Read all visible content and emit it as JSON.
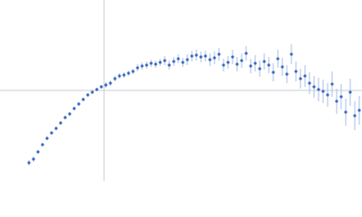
{
  "chart_data": {
    "type": "scatter",
    "color": "#3a68bd",
    "error_color": "#a9bfe6",
    "xlim": [
      0,
      400
    ],
    "ylim": [
      0,
      200
    ],
    "x": [
      32,
      37,
      42,
      47,
      52,
      57,
      62,
      67,
      72,
      77,
      82,
      87,
      92,
      97,
      102,
      107,
      112,
      117,
      122,
      127,
      132,
      137,
      142,
      147,
      152,
      157,
      162,
      167,
      172,
      177,
      182,
      187,
      192,
      197,
      202,
      207,
      212,
      217,
      222,
      227,
      232,
      237,
      242,
      247,
      252,
      257,
      262,
      267,
      272,
      277,
      282,
      287,
      292,
      297,
      302,
      307,
      312,
      317,
      322,
      327,
      332,
      337,
      342,
      347,
      352,
      357,
      362,
      367,
      372,
      377,
      382,
      387,
      392,
      397
    ],
    "values": [
      20,
      24,
      32,
      40,
      47,
      53,
      58,
      64,
      70,
      74,
      80,
      85,
      90,
      95,
      98,
      101,
      104,
      106,
      108,
      113,
      116,
      117,
      119,
      121,
      125,
      127,
      128,
      130,
      129,
      131,
      133,
      128,
      132,
      135,
      131,
      134,
      138,
      139,
      137,
      138,
      134,
      136,
      140,
      128,
      131,
      137,
      129,
      133,
      141,
      127,
      130,
      124,
      132,
      128,
      120,
      135,
      126,
      118,
      140,
      121,
      113,
      116,
      108,
      104,
      101,
      99,
      95,
      107,
      88,
      93,
      76,
      98,
      72,
      78
    ],
    "errors": [
      3,
      3,
      2,
      2,
      2,
      2,
      2,
      2,
      2,
      2,
      2,
      2,
      2,
      2,
      2,
      2,
      2,
      3,
      3,
      3,
      3,
      3,
      3,
      3,
      4,
      4,
      4,
      4,
      4,
      4,
      5,
      5,
      5,
      5,
      5,
      6,
      6,
      6,
      6,
      6,
      7,
      7,
      7,
      7,
      7,
      8,
      8,
      8,
      8,
      8,
      9,
      9,
      9,
      9,
      10,
      10,
      10,
      10,
      11,
      11,
      11,
      12,
      12,
      12,
      13,
      13,
      13,
      14,
      14,
      14,
      15,
      15,
      16,
      16
    ]
  }
}
